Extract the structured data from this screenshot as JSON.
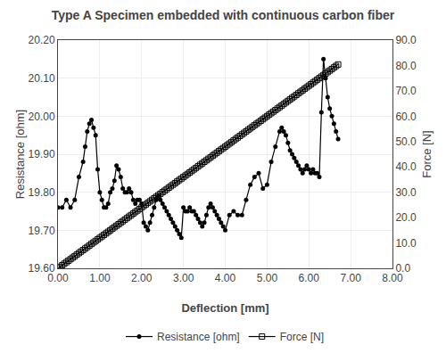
{
  "chart_data": {
    "type": "line",
    "title": "Type A Specimen embedded with continuous carbon fiber",
    "xlabel": "Deflection [mm]",
    "ylabel": "Resistance [ohm]",
    "y2label": "Force [N]",
    "xlim": [
      0.0,
      8.0
    ],
    "ylim": [
      19.6,
      20.2
    ],
    "y2lim": [
      0.0,
      90.0
    ],
    "xticks": [
      {
        "value": 0,
        "label": "0.00"
      },
      {
        "value": 1,
        "label": "1.00"
      },
      {
        "value": 2,
        "label": "2.00"
      },
      {
        "value": 3,
        "label": "3.00"
      },
      {
        "value": 4,
        "label": "4.00"
      },
      {
        "value": 5,
        "label": "5.00"
      },
      {
        "value": 6,
        "label": "6.00"
      },
      {
        "value": 7,
        "label": "7.00"
      },
      {
        "value": 8,
        "label": "8.00"
      }
    ],
    "yticks": [
      {
        "value": 19.6,
        "label": "19.60"
      },
      {
        "value": 19.7,
        "label": "19.70"
      },
      {
        "value": 19.8,
        "label": "19.80"
      },
      {
        "value": 19.9,
        "label": "19.90"
      },
      {
        "value": 20.0,
        "label": "20.00"
      },
      {
        "value": 20.1,
        "label": "20.10"
      },
      {
        "value": 20.2,
        "label": "20.20"
      }
    ],
    "y2ticks": [
      {
        "value": 0,
        "label": "0.0"
      },
      {
        "value": 10,
        "label": "10.0"
      },
      {
        "value": 20,
        "label": "20.0"
      },
      {
        "value": 30,
        "label": "30.0"
      },
      {
        "value": 40,
        "label": "40.0"
      },
      {
        "value": 50,
        "label": "50.0"
      },
      {
        "value": 60,
        "label": "60.0"
      },
      {
        "value": 70,
        "label": "70.0"
      },
      {
        "value": 80,
        "label": "80.0"
      },
      {
        "value": 90,
        "label": "90.0"
      }
    ],
    "grid": true,
    "legend": "bottom",
    "series": [
      {
        "name": "Resistance [ohm]",
        "color": "#000000",
        "marker": "circle",
        "x": [
          0.0,
          0.1,
          0.2,
          0.3,
          0.4,
          0.5,
          0.6,
          0.65,
          0.7,
          0.75,
          0.8,
          0.85,
          0.9,
          0.95,
          1.0,
          1.05,
          1.1,
          1.15,
          1.2,
          1.25,
          1.3,
          1.35,
          1.4,
          1.45,
          1.5,
          1.55,
          1.6,
          1.65,
          1.7,
          1.75,
          1.8,
          1.85,
          1.9,
          1.95,
          2.0,
          2.05,
          2.1,
          2.15,
          2.2,
          2.25,
          2.3,
          2.35,
          2.4,
          2.45,
          2.5,
          2.55,
          2.6,
          2.65,
          2.7,
          2.75,
          2.8,
          2.85,
          2.9,
          2.95,
          3.0,
          3.05,
          3.1,
          3.15,
          3.2,
          3.25,
          3.3,
          3.35,
          3.4,
          3.45,
          3.5,
          3.55,
          3.6,
          3.65,
          3.7,
          3.75,
          3.8,
          3.85,
          3.9,
          3.95,
          4.0,
          4.1,
          4.2,
          4.3,
          4.4,
          4.5,
          4.6,
          4.7,
          4.8,
          4.9,
          5.0,
          5.1,
          5.2,
          5.3,
          5.35,
          5.4,
          5.45,
          5.5,
          5.55,
          5.6,
          5.65,
          5.7,
          5.75,
          5.8,
          5.85,
          5.9,
          5.95,
          6.0,
          6.05,
          6.1,
          6.15,
          6.2,
          6.25,
          6.3,
          6.35,
          6.4,
          6.45,
          6.5,
          6.55,
          6.6,
          6.65,
          6.7
        ],
        "values": [
          19.76,
          19.76,
          19.78,
          19.76,
          19.78,
          19.84,
          19.88,
          19.92,
          19.96,
          19.98,
          19.99,
          19.97,
          19.95,
          19.86,
          19.8,
          19.78,
          19.76,
          19.76,
          19.77,
          19.8,
          19.81,
          19.83,
          19.87,
          19.86,
          19.84,
          19.81,
          19.8,
          19.8,
          19.81,
          19.8,
          19.78,
          19.77,
          19.78,
          19.78,
          19.77,
          19.72,
          19.71,
          19.7,
          19.72,
          19.74,
          19.76,
          19.78,
          19.79,
          19.78,
          19.77,
          19.76,
          19.75,
          19.74,
          19.73,
          19.72,
          19.71,
          19.7,
          19.69,
          19.68,
          19.76,
          19.75,
          19.75,
          19.76,
          19.75,
          19.75,
          19.74,
          19.73,
          19.72,
          19.71,
          19.72,
          19.74,
          19.76,
          19.77,
          19.76,
          19.75,
          19.74,
          19.73,
          19.72,
          19.71,
          19.7,
          19.74,
          19.75,
          19.74,
          19.74,
          19.78,
          19.82,
          19.84,
          19.85,
          19.81,
          19.82,
          19.88,
          19.92,
          19.96,
          19.97,
          19.96,
          19.95,
          19.93,
          19.91,
          19.9,
          19.89,
          19.88,
          19.87,
          19.86,
          19.85,
          19.86,
          19.87,
          19.86,
          19.85,
          19.86,
          19.85,
          19.85,
          19.84,
          20.01,
          20.15,
          20.1,
          20.05,
          20.02,
          20.0,
          19.98,
          19.96,
          19.94
        ]
      },
      {
        "name": "Force [N]",
        "color": "#000000",
        "marker": "square-open",
        "axis": "y2",
        "x": [
          0.0,
          0.05,
          0.1,
          0.15,
          0.2,
          0.25,
          0.3,
          0.35,
          0.4,
          0.45,
          0.5,
          0.55,
          0.6,
          0.65,
          0.7,
          0.75,
          0.8,
          0.85,
          0.9,
          0.95,
          1.0,
          1.05,
          1.1,
          1.15,
          1.2,
          1.25,
          1.3,
          1.35,
          1.4,
          1.45,
          1.5,
          1.55,
          1.6,
          1.65,
          1.7,
          1.75,
          1.8,
          1.85,
          1.9,
          1.95,
          2.0,
          2.05,
          2.1,
          2.15,
          2.2,
          2.25,
          2.3,
          2.35,
          2.4,
          2.45,
          2.5,
          2.55,
          2.6,
          2.65,
          2.7,
          2.75,
          2.8,
          2.85,
          2.9,
          2.95,
          3.0,
          3.05,
          3.1,
          3.15,
          3.2,
          3.25,
          3.3,
          3.35,
          3.4,
          3.45,
          3.5,
          3.55,
          3.6,
          3.65,
          3.7,
          3.75,
          3.8,
          3.85,
          3.9,
          3.95,
          4.0,
          4.05,
          4.1,
          4.15,
          4.2,
          4.25,
          4.3,
          4.35,
          4.4,
          4.45,
          4.5,
          4.55,
          4.6,
          4.65,
          4.7,
          4.75,
          4.8,
          4.85,
          4.9,
          4.95,
          5.0,
          5.05,
          5.1,
          5.15,
          5.2,
          5.25,
          5.3,
          5.35,
          5.4,
          5.45,
          5.5,
          5.55,
          5.6,
          5.65,
          5.7,
          5.75,
          5.8,
          5.85,
          5.9,
          5.95,
          6.0,
          6.05,
          6.1,
          6.15,
          6.2,
          6.25,
          6.3,
          6.35,
          6.4,
          6.45,
          6.5,
          6.55,
          6.6,
          6.65,
          6.7
        ],
        "values": [
          0.0,
          0.6,
          1.2,
          1.8,
          2.4,
          3.0,
          3.6,
          4.2,
          4.8,
          5.4,
          6.0,
          6.6,
          7.2,
          7.8,
          8.4,
          9.0,
          9.6,
          10.2,
          10.8,
          11.4,
          12.0,
          12.6,
          13.2,
          13.8,
          14.4,
          15.0,
          15.6,
          16.2,
          16.8,
          17.4,
          18.0,
          18.6,
          19.2,
          19.8,
          20.4,
          21.0,
          21.6,
          22.2,
          22.8,
          23.4,
          24.0,
          24.6,
          25.2,
          25.8,
          26.4,
          27.0,
          27.6,
          28.2,
          28.8,
          29.4,
          30.0,
          30.6,
          31.2,
          31.8,
          32.4,
          33.0,
          33.6,
          34.2,
          34.8,
          35.4,
          36.0,
          36.6,
          37.2,
          37.8,
          38.4,
          39.0,
          39.6,
          40.2,
          40.8,
          41.4,
          42.0,
          42.6,
          43.2,
          43.8,
          44.4,
          45.0,
          45.6,
          46.2,
          46.8,
          47.4,
          48.0,
          48.6,
          49.2,
          49.8,
          50.4,
          51.0,
          51.6,
          52.2,
          52.8,
          53.4,
          54.0,
          54.6,
          55.2,
          55.8,
          56.4,
          57.0,
          57.6,
          58.2,
          58.8,
          59.4,
          60.0,
          60.6,
          61.2,
          61.8,
          62.4,
          63.0,
          63.6,
          64.2,
          64.8,
          65.4,
          66.0,
          66.6,
          67.2,
          67.8,
          68.4,
          69.0,
          69.6,
          70.2,
          70.8,
          71.4,
          72.0,
          72.6,
          73.2,
          73.8,
          74.4,
          75.0,
          75.6,
          76.2,
          76.8,
          77.4,
          78.0,
          78.6,
          79.2,
          79.8,
          80.4
        ]
      }
    ]
  }
}
